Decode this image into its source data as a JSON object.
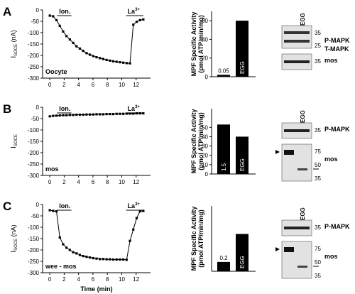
{
  "panels": [
    {
      "letter": "A",
      "condition": "Oocyte",
      "x_ticks": [
        "0",
        "2",
        "4",
        "6",
        "8",
        "10",
        "12"
      ],
      "y_ticks": [
        "0",
        "-50",
        "-100",
        "-150",
        "-200",
        "-250",
        "-300"
      ],
      "ylabel_main": "I",
      "ylabel_sub": "SOCE",
      "ylabel_unit": " (nA)",
      "ion_label": "Ion.",
      "la_label": "La",
      "la_sup": "3+",
      "trace_y": [
        -25,
        -28,
        -45,
        -70,
        -95,
        -115,
        -130,
        -145,
        -160,
        -170,
        -180,
        -190,
        -197,
        -203,
        -208,
        -212,
        -216,
        -220,
        -223,
        -226,
        -228,
        -230,
        -232,
        -234,
        -235,
        -65,
        -52,
        -45,
        -42
      ],
      "bar_yticks": [
        "0",
        "20",
        "40",
        "60"
      ],
      "bar_ylabel": "MPF Specific Activity",
      "bar_ylabel2": "(pmol ATP/min/mg)",
      "bars": [
        {
          "label": "0.05",
          "value": 2
        },
        {
          "label": "EGG",
          "value": 60
        }
      ],
      "blot_egg": "EGG",
      "blots": [
        {
          "labels": [
            "P-MAPK",
            "T-MAPK"
          ],
          "markers": [
            "35",
            "25"
          ]
        },
        {
          "labels": [
            "mos"
          ],
          "markers": [
            "35"
          ]
        }
      ]
    },
    {
      "letter": "B",
      "condition": "mos",
      "x_ticks": [
        "0",
        "2",
        "4",
        "6",
        "8",
        "10",
        "12"
      ],
      "y_ticks": [
        "0",
        "-50",
        "-100",
        "-150",
        "-200",
        "-250",
        "-300"
      ],
      "ylabel_main": "I",
      "ylabel_sub": "SOCE",
      "ylabel_unit": "",
      "ion_label": "Ion.",
      "la_label": "La",
      "la_sup": "3+",
      "trace_y": [
        -40,
        -38,
        -37,
        -36,
        -35,
        -35,
        -34,
        -34,
        -33,
        -33,
        -33,
        -32,
        -32,
        -32,
        -31,
        -31,
        -31,
        -30,
        -30,
        -30,
        -29,
        -29,
        -29,
        -28,
        -28,
        -28,
        -27,
        -27,
        -27
      ],
      "bar_yticks": [
        "0",
        "10",
        "20",
        "30",
        "40",
        "50"
      ],
      "bar_ylabel": "MPF Specific Activity",
      "bar_ylabel2": "(pmol ATP/min/mg)",
      "bars": [
        {
          "label": "1.5",
          "value": 53
        },
        {
          "label": "EGG",
          "value": 40
        }
      ],
      "blot_egg": "EGG",
      "blots": [
        {
          "labels": [
            "P-MAPK"
          ],
          "markers": [
            "35"
          ]
        },
        {
          "labels": [
            "mos"
          ],
          "markers": [
            "75",
            "50",
            "35"
          ]
        }
      ]
    },
    {
      "letter": "C",
      "condition": "wee - mos",
      "x_ticks": [
        "0",
        "2",
        "4",
        "6",
        "8",
        "10",
        "12"
      ],
      "y_ticks": [
        "0",
        "-50",
        "-100",
        "-150",
        "-200",
        "-250",
        "-300"
      ],
      "ylabel_main": "I",
      "ylabel_sub": "SOCE",
      "ylabel_unit": " (nA)",
      "ion_label": "Ion.",
      "la_label": "La",
      "la_sup": "3+",
      "trace_y": [
        -25,
        -28,
        -30,
        -145,
        -175,
        -190,
        -200,
        -210,
        -215,
        -222,
        -227,
        -230,
        -233,
        -236,
        -238,
        -240,
        -240,
        -241,
        -241,
        -242,
        -242,
        -242,
        -242,
        -243,
        -160,
        -110,
        -60,
        -30,
        -28
      ],
      "bar_yticks": [],
      "bar_ylabel": "MPF Specific Activity",
      "bar_ylabel2": "(pmol ATP/min/mg)",
      "bars": [
        {
          "label": "0.2",
          "value": 10
        },
        {
          "label": "EGG",
          "value": 40
        }
      ],
      "blot_egg": "EGG",
      "blots": [
        {
          "labels": [
            "P-MAPK"
          ],
          "markers": [
            "35"
          ]
        },
        {
          "labels": [
            "mos"
          ],
          "markers": [
            "75",
            "50",
            "35"
          ]
        }
      ]
    }
  ],
  "xlabel": "Time (min)"
}
